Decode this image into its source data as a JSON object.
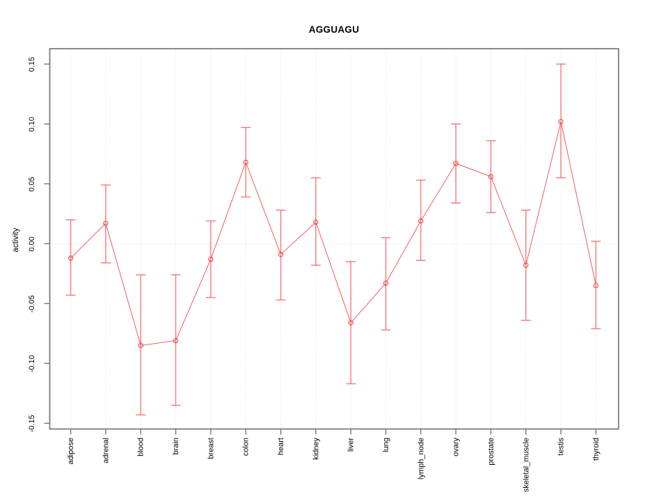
{
  "chart_data": {
    "type": "scatter",
    "title": "AGGUAGU",
    "xlabel": "",
    "ylabel": "activity",
    "ylim": [
      -0.158,
      0.163
    ],
    "yticks": [
      0.15,
      0.1,
      0.05,
      0.0,
      -0.05,
      -0.1,
      -0.15
    ],
    "ytick_labels": [
      "0.15",
      "0.10",
      "0.05",
      "0.00",
      "-0.05",
      "-0.10",
      "-0.15"
    ],
    "categories": [
      "adipose",
      "adrenal",
      "blood",
      "brain",
      "breast",
      "colon",
      "heart",
      "kidney",
      "liver",
      "lung",
      "lymph_node",
      "ovary",
      "prostate",
      "skeletal_muscle",
      "testis",
      "thyroid"
    ],
    "series": [
      {
        "name": "activity",
        "values": [
          -0.012,
          0.017,
          -0.085,
          -0.081,
          -0.013,
          0.068,
          -0.009,
          0.018,
          -0.066,
          -0.033,
          0.019,
          0.067,
          0.056,
          -0.018,
          0.102,
          -0.035
        ]
      },
      {
        "name": "upper_ci",
        "values": [
          0.02,
          0.049,
          -0.026,
          -0.026,
          0.019,
          0.097,
          0.028,
          0.055,
          -0.015,
          0.005,
          0.053,
          0.1,
          0.086,
          0.028,
          0.15,
          0.002
        ]
      },
      {
        "name": "lower_ci",
        "values": [
          -0.043,
          -0.016,
          -0.143,
          -0.135,
          -0.045,
          0.039,
          -0.047,
          -0.018,
          -0.117,
          -0.072,
          -0.014,
          0.034,
          0.026,
          -0.064,
          0.055,
          -0.071
        ]
      }
    ],
    "legend": "none",
    "grid": {
      "vertical": "dotted at each category",
      "horizontal": "dotted at 0 only"
    },
    "colors": {
      "point": "#f25050",
      "line": "#f25050",
      "error_bar": "#f56a6a",
      "grid": "#d9d9d9",
      "frame": "#757575",
      "text": "#000000"
    }
  }
}
